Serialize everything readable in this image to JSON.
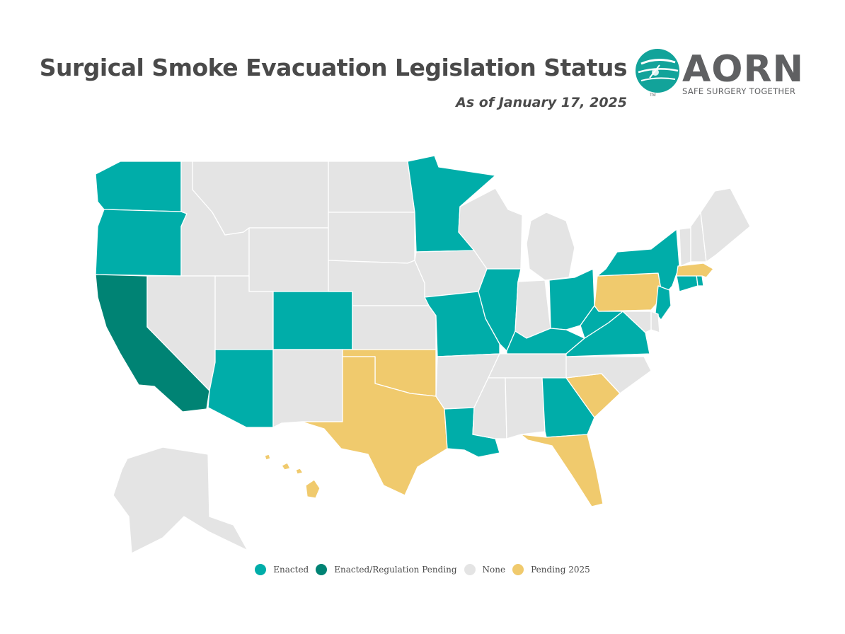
{
  "header": {
    "title": "Surgical Smoke Evacuation Legislation Status",
    "subtitle": "As of January 17, 2025"
  },
  "logo": {
    "wordmark": "AORN",
    "tagline": "SAFE SURGERY TOGETHER",
    "tm": "TM",
    "icon": "aorn-globe-logo-icon"
  },
  "colors": {
    "enacted": "#00ADA9",
    "enacted_regulation_pending": "#008374",
    "none": "#E4E4E4",
    "pending_2025": "#F0CA6D"
  },
  "legend": [
    {
      "key": "enacted",
      "label": "Enacted"
    },
    {
      "key": "enacted_regulation_pending",
      "label": "Enacted/Regulation Pending"
    },
    {
      "key": "none",
      "label": "None"
    },
    {
      "key": "pending_2025",
      "label": "Pending 2025"
    }
  ],
  "states": {
    "WA": "enacted",
    "OR": "enacted",
    "CA": "enacted_regulation_pending",
    "ID": "none",
    "NV": "none",
    "MT": "none",
    "WY": "none",
    "UT": "none",
    "AZ": "enacted",
    "CO": "enacted",
    "NM": "none",
    "ND": "none",
    "SD": "none",
    "NE": "none",
    "KS": "none",
    "OK": "pending_2025",
    "TX": "pending_2025",
    "MN": "enacted",
    "IA": "none",
    "MO": "enacted",
    "AR": "none",
    "LA": "enacted",
    "WI": "none",
    "IL": "enacted",
    "MI": "none",
    "IN": "none",
    "OH": "enacted",
    "KY": "enacted",
    "TN": "none",
    "MS": "none",
    "AL": "none",
    "GA": "enacted",
    "FL": "pending_2025",
    "SC": "pending_2025",
    "NC": "none",
    "VA": "enacted",
    "WV": "enacted",
    "PA": "pending_2025",
    "NY": "enacted",
    "NJ": "enacted",
    "DE": "none",
    "MD": "none",
    "CT": "enacted",
    "RI": "enacted",
    "MA": "pending_2025",
    "VT": "none",
    "NH": "none",
    "ME": "none",
    "AK": "none",
    "HI": "pending_2025"
  }
}
